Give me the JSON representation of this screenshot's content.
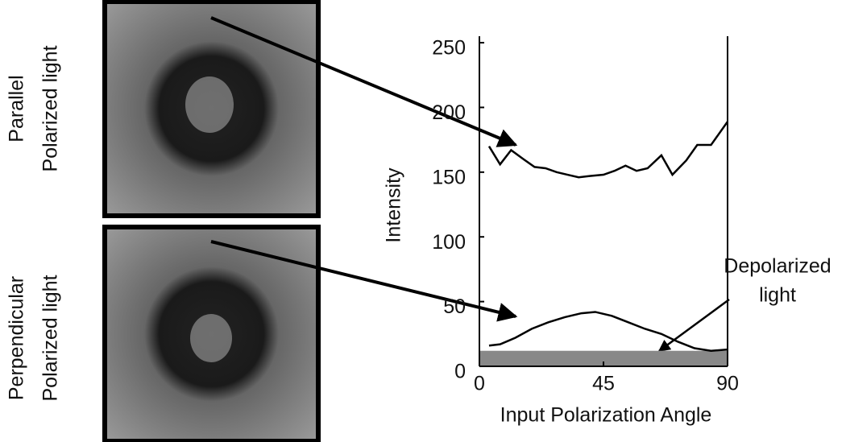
{
  "images": [
    {
      "label_lines": [
        "Parallel",
        "Polarized light"
      ]
    },
    {
      "label_lines": [
        "Perpendicular",
        "Polarized light"
      ]
    }
  ],
  "chart_data": {
    "type": "line",
    "xlabel": "Input Polarization Angle",
    "ylabel": "Intensity",
    "xlim": [
      0,
      90
    ],
    "ylim": [
      0,
      255
    ],
    "xticks": [
      0,
      45,
      90
    ],
    "yticks": [
      0,
      50,
      100,
      150,
      200,
      250
    ],
    "annotation": [
      "Depolarized",
      "light"
    ],
    "band": {
      "value": 12,
      "color": "#888888"
    },
    "series": [
      {
        "color": "#000000",
        "x": [
          3.5,
          7.5,
          11.5,
          16,
          20,
          24,
          28,
          32,
          36,
          40,
          45,
          49,
          53,
          57,
          61,
          66,
          70,
          75,
          79,
          84,
          90
        ],
        "values": [
          170,
          156,
          167,
          160,
          154,
          153,
          150,
          148,
          146,
          147,
          148,
          151,
          155,
          151,
          153,
          163,
          148,
          159,
          171,
          171,
          189
        ]
      },
      {
        "color": "#000000",
        "x": [
          3.5,
          7.5,
          13,
          19,
          25,
          31,
          37,
          42,
          48,
          54,
          60,
          66,
          72,
          78,
          84,
          90
        ],
        "values": [
          16,
          17,
          22,
          29,
          34,
          38,
          41,
          42,
          39,
          34,
          29,
          25,
          19,
          14,
          12,
          13
        ]
      }
    ]
  }
}
